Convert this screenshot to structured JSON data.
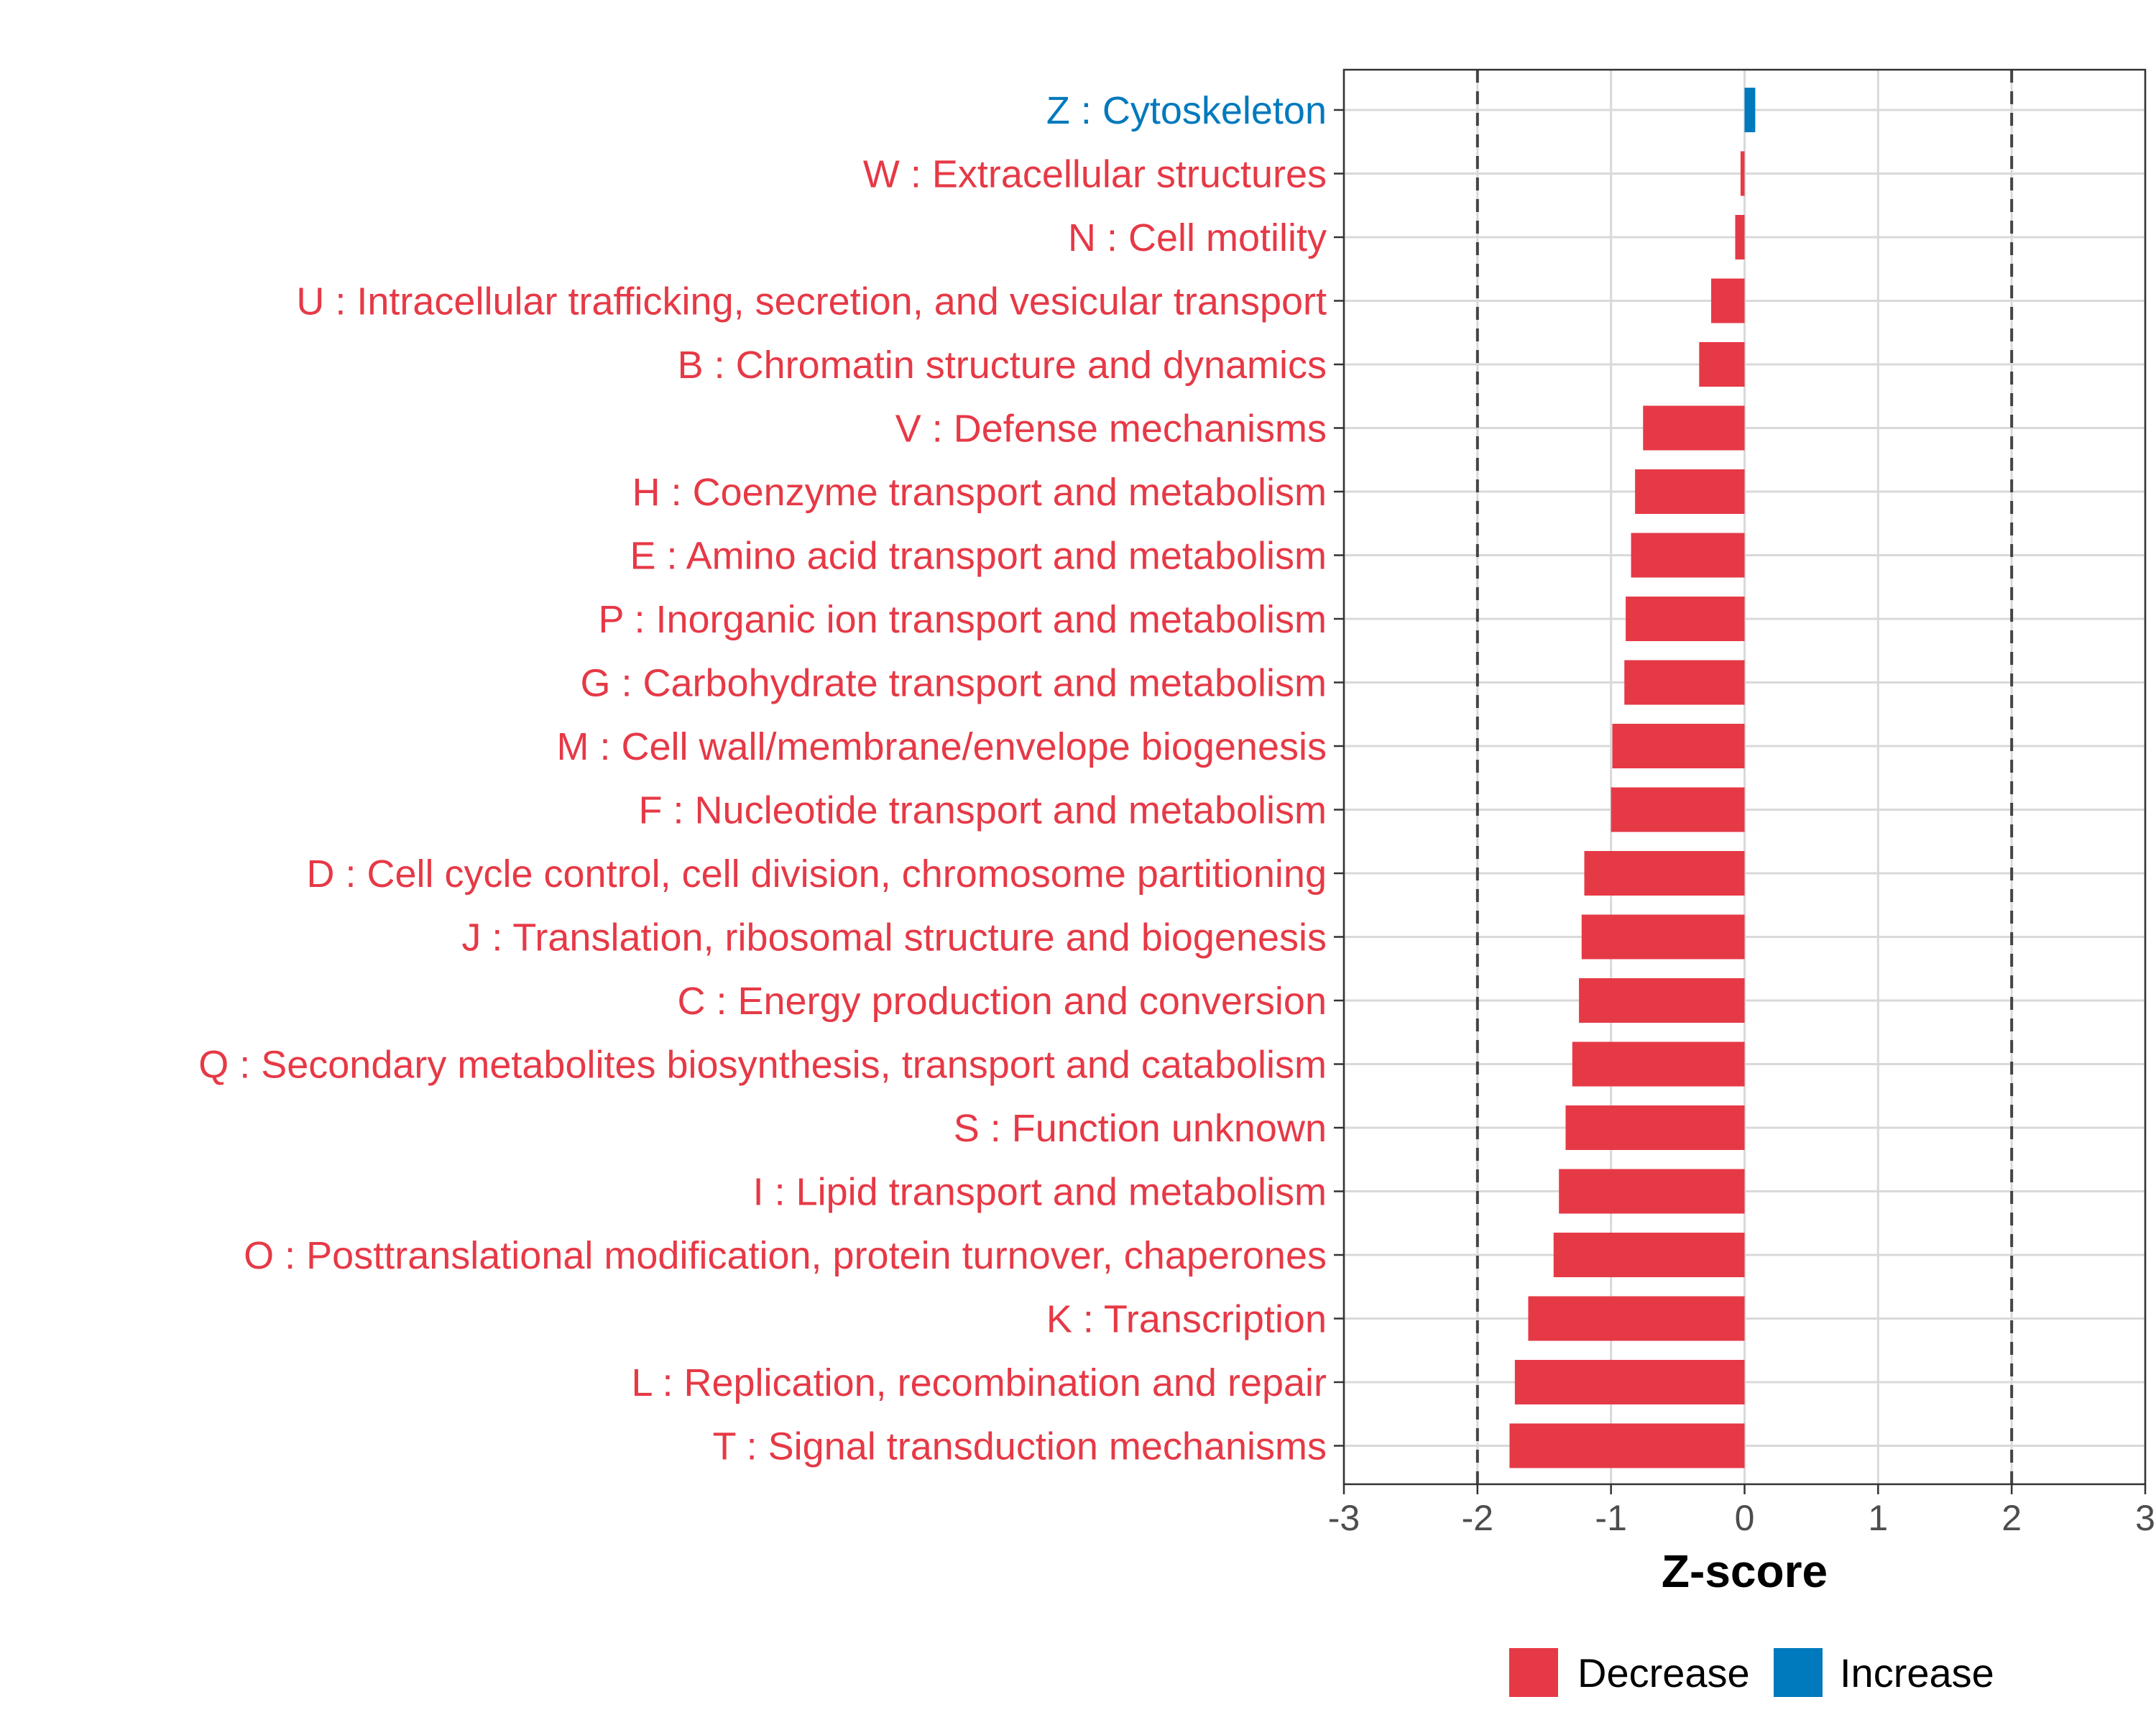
{
  "chart_data": {
    "type": "bar",
    "orientation": "horizontal",
    "title": "",
    "xlabel": "Z-score",
    "ylabel": "",
    "xlim": [
      -3,
      3
    ],
    "xticks": [
      -3,
      -2,
      -1,
      0,
      1,
      2,
      3
    ],
    "xtick_labels": [
      "-3",
      "-2",
      "-1",
      "0",
      "1",
      "2",
      "3"
    ],
    "reference_lines": [
      -2,
      2
    ],
    "grid": true,
    "legend_position": "bottom",
    "legend": [
      {
        "label": "Decrease",
        "color": "#E63946"
      },
      {
        "label": "Increase",
        "color": "#0079BD"
      }
    ],
    "categories": [
      "Z : Cytoskeleton",
      "W : Extracellular structures",
      "N : Cell motility",
      "U : Intracellular trafficking, secretion, and vesicular transport",
      "B : Chromatin structure and dynamics",
      "V : Defense mechanisms",
      "H : Coenzyme transport and metabolism",
      "E : Amino acid transport and metabolism",
      "P : Inorganic ion transport and metabolism",
      "G : Carbohydrate transport and metabolism",
      "M : Cell wall/membrane/envelope biogenesis",
      "F : Nucleotide transport and metabolism",
      "D : Cell cycle control, cell division, chromosome partitioning",
      "J : Translation, ribosomal structure and biogenesis",
      "C : Energy production and conversion",
      "Q : Secondary metabolites biosynthesis, transport and catabolism",
      "S : Function unknown",
      "I : Lipid transport and metabolism",
      "O : Posttranslational modification, protein turnover, chaperones",
      "K : Transcription",
      "L : Replication, recombination and repair",
      "T : Signal transduction mechanisms"
    ],
    "values": [
      0.08,
      -0.03,
      -0.07,
      -0.25,
      -0.34,
      -0.76,
      -0.82,
      -0.85,
      -0.89,
      -0.9,
      -0.99,
      -1.0,
      -1.2,
      -1.22,
      -1.24,
      -1.29,
      -1.34,
      -1.39,
      -1.43,
      -1.62,
      -1.72,
      -1.76
    ],
    "direction": [
      "Increase",
      "Decrease",
      "Decrease",
      "Decrease",
      "Decrease",
      "Decrease",
      "Decrease",
      "Decrease",
      "Decrease",
      "Decrease",
      "Decrease",
      "Decrease",
      "Decrease",
      "Decrease",
      "Decrease",
      "Decrease",
      "Decrease",
      "Decrease",
      "Decrease",
      "Decrease",
      "Decrease",
      "Decrease"
    ]
  }
}
